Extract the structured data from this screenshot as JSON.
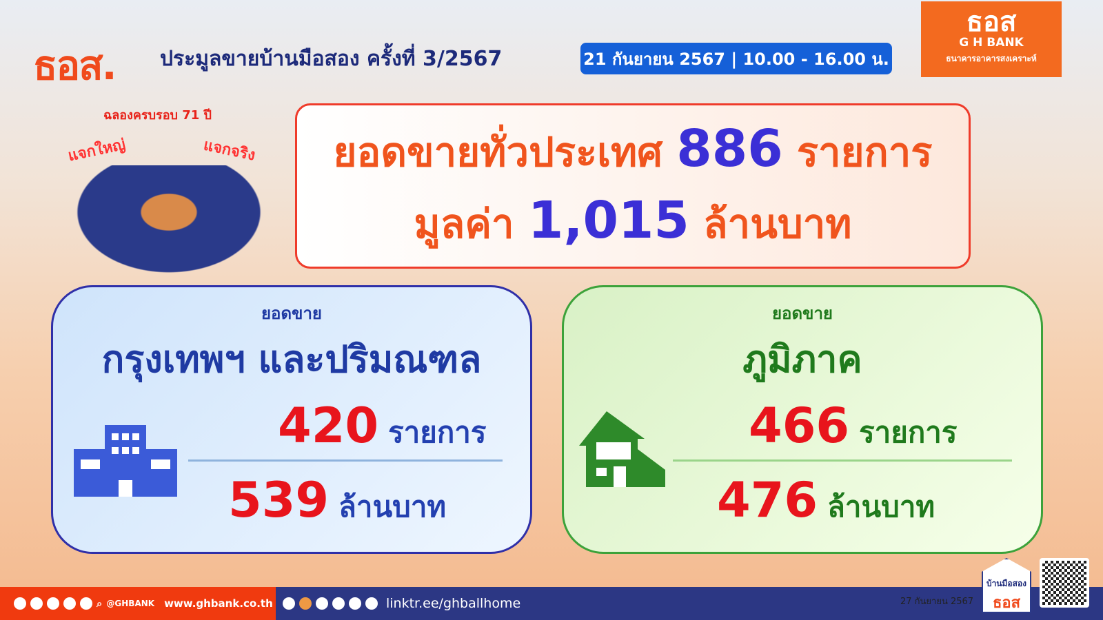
{
  "header": {
    "brand": "ธอส.",
    "title": "ประมูลขายบ้านมือสอง ครั้งที่ 3/2567",
    "date_time": "21 กันยายน 2567 | 10.00 - 16.00 น."
  },
  "logo": {
    "thai": "ธอส",
    "english": "G H BANK",
    "full_name": "ธนาคารอาคารสงเคราะห์",
    "color": "#f36a1f"
  },
  "promo": {
    "celebrate": "ฉลองครบรอบ 71 ปี",
    "left": "แจกใหญ่",
    "right": "แจกจริง"
  },
  "total": {
    "label": "ยอดขายทั่วประเทศ",
    "count": "886",
    "count_unit": "รายการ",
    "value_label": "มูลค่า",
    "value": "1,015",
    "value_unit": "ล้านบาท"
  },
  "bangkok": {
    "sub": "ยอดขาย",
    "title": "กรุงเทพฯ และปริมณฑล",
    "count": "420",
    "count_unit": "รายการ",
    "value": "539",
    "value_unit": "ล้านบาท"
  },
  "regional": {
    "sub": "ยอดขาย",
    "title": "ภูมิภาค",
    "count": "466",
    "count_unit": "รายการ",
    "value": "476",
    "value_unit": "ล้านบาท"
  },
  "footer": {
    "handle": "@GHBANK",
    "website": "www.ghbank.co.th",
    "linktree": "linktr.ee/ghballhome",
    "published": "27 กันยายน 2567"
  },
  "badge": {
    "line1": "บ้านมือสอง",
    "line2": "ธอส"
  }
}
